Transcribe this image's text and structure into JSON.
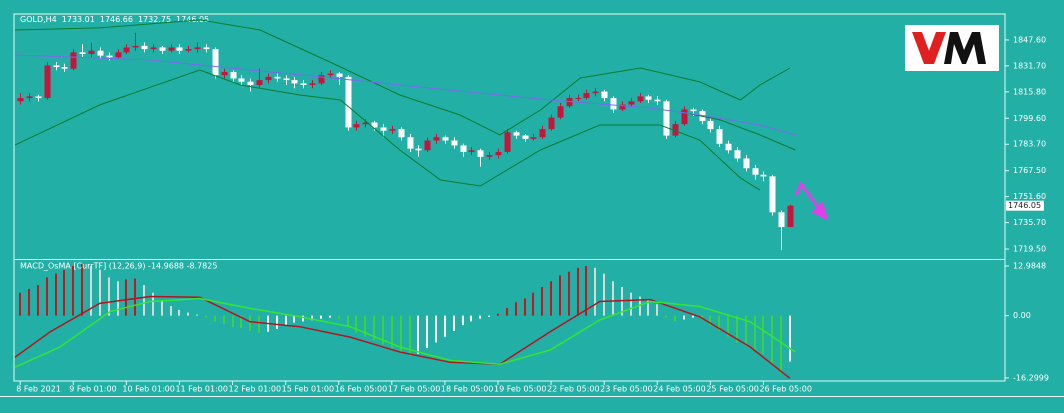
{
  "chart_data": [
    {
      "type": "candlestick",
      "title": "GOLD,H4",
      "xlim": [
        -0.7,
        111.3
      ],
      "ylim": [
        1714.0,
        1863.5
      ],
      "yticks": [
        {
          "value": 1847.6,
          "label": "1847.60"
        },
        {
          "value": 1831.7,
          "label": "1831.70"
        },
        {
          "value": 1815.8,
          "label": "1815.80"
        },
        {
          "value": 1799.6,
          "label": "1799.60"
        },
        {
          "value": 1783.7,
          "label": "1783.70"
        },
        {
          "value": 1767.5,
          "label": "1767.50"
        },
        {
          "value": 1751.6,
          "label": "1751.60"
        },
        {
          "value": 1735.7,
          "label": "1735.70"
        },
        {
          "value": 1719.5,
          "label": "1719.50"
        }
      ],
      "xticks": [
        {
          "value": 0,
          "label": "8 Feb 2021"
        },
        {
          "value": 6,
          "label": "9 Feb 01:00"
        },
        {
          "value": 12,
          "label": "10 Feb 01:00"
        },
        {
          "value": 18,
          "label": "11 Feb 01:00"
        },
        {
          "value": 24,
          "label": "12 Feb 01:00"
        },
        {
          "value": 30,
          "label": "15 Feb 01:00"
        },
        {
          "value": 36,
          "label": "16 Feb 05:00"
        },
        {
          "value": 42,
          "label": "17 Feb 05:00"
        },
        {
          "value": 48,
          "label": "18 Feb 05:00"
        },
        {
          "value": 54,
          "label": "19 Feb 05:00"
        },
        {
          "value": 60,
          "label": "22 Feb 05:00"
        },
        {
          "value": 66,
          "label": "23 Feb 05:00"
        },
        {
          "value": 72,
          "label": "24 Feb 05:00"
        },
        {
          "value": 78,
          "label": "25 Feb 05:00"
        },
        {
          "value": 84,
          "label": "26 Feb 05:00"
        }
      ],
      "up_color": "#c8143c",
      "down_color": "#ffffff",
      "ohlc": [
        [
          1810,
          1815,
          1808,
          1812
        ],
        [
          1812,
          1815,
          1810,
          1813
        ],
        [
          1813,
          1814,
          1810,
          1812
        ],
        [
          1812,
          1834,
          1811,
          1832
        ],
        [
          1832,
          1834,
          1829,
          1831
        ],
        [
          1831,
          1833,
          1828,
          1830
        ],
        [
          1830,
          1842,
          1829,
          1840
        ],
        [
          1840,
          1845,
          1837,
          1839
        ],
        [
          1839,
          1846,
          1837,
          1841
        ],
        [
          1841,
          1843,
          1836,
          1838
        ],
        [
          1838,
          1840,
          1835,
          1837
        ],
        [
          1837,
          1842,
          1836,
          1840
        ],
        [
          1840,
          1845,
          1839,
          1843
        ],
        [
          1843,
          1852,
          1841,
          1844
        ],
        [
          1844,
          1846,
          1840,
          1842
        ],
        [
          1842,
          1845,
          1840,
          1843
        ],
        [
          1843,
          1844,
          1839,
          1841
        ],
        [
          1841,
          1845,
          1840,
          1843
        ],
        [
          1843,
          1845,
          1839,
          1841
        ],
        [
          1841,
          1844,
          1840,
          1842
        ],
        [
          1842,
          1846,
          1840,
          1843
        ],
        [
          1843,
          1845,
          1840,
          1842
        ],
        [
          1842,
          1843,
          1824,
          1826
        ],
        [
          1826,
          1830,
          1824,
          1828
        ],
        [
          1828,
          1829,
          1822,
          1824
        ],
        [
          1824,
          1826,
          1820,
          1822
        ],
        [
          1822,
          1824,
          1816,
          1820
        ],
        [
          1820,
          1830,
          1818,
          1823
        ],
        [
          1823,
          1827,
          1821,
          1825
        ],
        [
          1825,
          1827,
          1822,
          1824
        ],
        [
          1824,
          1826,
          1820,
          1823
        ],
        [
          1823,
          1825,
          1818,
          1821
        ],
        [
          1821,
          1823,
          1818,
          1820
        ],
        [
          1820,
          1823,
          1818,
          1821
        ],
        [
          1821,
          1828,
          1820,
          1826
        ],
        [
          1826,
          1829,
          1824,
          1827
        ],
        [
          1827,
          1828,
          1820,
          1825
        ],
        [
          1825,
          1826,
          1792,
          1794
        ],
        [
          1794,
          1798,
          1792,
          1796
        ],
        [
          1796,
          1799,
          1794,
          1797
        ],
        [
          1797,
          1798,
          1792,
          1794
        ],
        [
          1794,
          1796,
          1788,
          1792
        ],
        [
          1792,
          1795,
          1790,
          1793
        ],
        [
          1793,
          1794,
          1786,
          1788
        ],
        [
          1788,
          1790,
          1779,
          1781
        ],
        [
          1781,
          1783,
          1776,
          1780
        ],
        [
          1780,
          1788,
          1779,
          1786
        ],
        [
          1786,
          1790,
          1784,
          1788
        ],
        [
          1788,
          1789,
          1784,
          1786
        ],
        [
          1786,
          1788,
          1781,
          1783
        ],
        [
          1783,
          1784,
          1776,
          1779
        ],
        [
          1779,
          1782,
          1777,
          1780
        ],
        [
          1780,
          1781,
          1770,
          1776
        ],
        [
          1776,
          1779,
          1774,
          1777
        ],
        [
          1777,
          1781,
          1775,
          1779
        ],
        [
          1779,
          1793,
          1778,
          1791
        ],
        [
          1791,
          1792,
          1787,
          1789
        ],
        [
          1789,
          1790,
          1785,
          1787
        ],
        [
          1787,
          1790,
          1786,
          1788
        ],
        [
          1788,
          1795,
          1787,
          1793
        ],
        [
          1793,
          1802,
          1792,
          1800
        ],
        [
          1800,
          1809,
          1799,
          1807
        ],
        [
          1807,
          1814,
          1806,
          1812
        ],
        [
          1812,
          1814,
          1810,
          1812
        ],
        [
          1812,
          1817,
          1811,
          1815
        ],
        [
          1815,
          1818,
          1813,
          1816
        ],
        [
          1816,
          1817,
          1810,
          1812
        ],
        [
          1812,
          1813,
          1803,
          1805
        ],
        [
          1805,
          1810,
          1804,
          1808
        ],
        [
          1808,
          1812,
          1807,
          1810
        ],
        [
          1810,
          1815,
          1809,
          1813
        ],
        [
          1813,
          1814,
          1809,
          1811
        ],
        [
          1811,
          1813,
          1808,
          1810
        ],
        [
          1810,
          1811,
          1787,
          1789
        ],
        [
          1789,
          1798,
          1788,
          1796
        ],
        [
          1796,
          1807,
          1795,
          1805
        ],
        [
          1805,
          1806,
          1801,
          1804
        ],
        [
          1804,
          1805,
          1796,
          1798
        ],
        [
          1798,
          1800,
          1791,
          1793
        ],
        [
          1793,
          1795,
          1782,
          1784
        ],
        [
          1784,
          1786,
          1778,
          1780
        ],
        [
          1780,
          1782,
          1773,
          1775
        ],
        [
          1775,
          1777,
          1767,
          1769
        ],
        [
          1769,
          1771,
          1762,
          1765
        ],
        [
          1765,
          1767,
          1761,
          1764
        ],
        [
          1764,
          1765,
          1740,
          1742
        ],
        [
          1742,
          1743,
          1719,
          1733
        ],
        [
          1733.01,
          1746.66,
          1732.75,
          1746.05
        ]
      ],
      "lines": [
        {
          "color": "#0b7a2e",
          "x": [
            -0.6,
            9.0,
            20.3,
            27.1,
            35.0,
            42.9,
            49.7,
            54.2,
            58.8,
            63.3,
            70.1,
            76.8,
            81.4,
            83.6,
            87.0
          ],
          "values": [
            1853.7,
            1855.0,
            1859.9,
            1853.7,
            1834.1,
            1813.9,
            1801.6,
            1789.4,
            1804.7,
            1824.3,
            1830.4,
            1821.9,
            1810.8,
            1820.0,
            1830.4
          ]
        },
        {
          "color": "#0b7a2e",
          "x": [
            -0.6,
            9.0,
            20.3,
            24.9,
            31.6,
            36.2,
            42.9,
            47.5,
            52.0,
            58.8,
            65.5,
            72.3,
            76.8,
            81.4,
            83.6
          ],
          "values": [
            1783.2,
            1807.8,
            1829.2,
            1820.0,
            1813.9,
            1810.8,
            1780.2,
            1761.8,
            1758.1,
            1780.2,
            1795.5,
            1795.5,
            1786.3,
            1763.0,
            1755.6
          ]
        },
        {
          "color": "#0b7a2e",
          "x": [
            74.6,
            79.1,
            83.6,
            87.6
          ],
          "values": [
            1803.5,
            1798.6,
            1789.4,
            1780.2
          ]
        },
        {
          "color": "#7b68ee",
          "x": [
            -0.6,
            14.7,
            26.0,
            37.3,
            48.6,
            59.9,
            71.2,
            76.8,
            83.6,
            87.6
          ],
          "values": [
            1838.4,
            1835.3,
            1829.2,
            1823.1,
            1816.9,
            1810.8,
            1805.9,
            1801.6,
            1795.5,
            1789.4
          ]
        }
      ]
    },
    {
      "type": "histogram",
      "title": "MACD_OsMA [CurrTF] (12,26,9) -14.9688 -8.7825",
      "xlim": [
        -0.7,
        111.3
      ],
      "ylim": [
        -17.1,
        14.3
      ],
      "yticks": [
        12.9848,
        {
          "value": 0,
          "label": "0.00"
        },
        -16.2999
      ],
      "colors": [
        "#c8141e",
        "#d8d8d8",
        "#3cd23c",
        "#ffffff"
      ],
      "values": [
        6,
        7,
        8,
        10,
        11,
        12,
        13,
        13.5,
        13,
        12,
        10,
        9,
        9.5,
        9.7,
        8,
        6,
        4,
        2.5,
        1.5,
        0.8,
        0.3,
        -0.5,
        -1.5,
        -2.2,
        -3,
        -3.3,
        -4,
        -4.5,
        -4.2,
        -3.5,
        -2.5,
        -1.8,
        -1.5,
        -1.2,
        -0.8,
        -0.5,
        -0.8,
        -3,
        -4.5,
        -5.5,
        -6.5,
        -7.5,
        -8.5,
        -9.5,
        -10.5,
        -10,
        -8.5,
        -7,
        -5.5,
        -4,
        -2.5,
        -1.5,
        -0.8,
        -0.3,
        0.5,
        2,
        3.5,
        4.5,
        6,
        7.5,
        9,
        10.5,
        11.5,
        12.5,
        13,
        12.5,
        11,
        9,
        7.5,
        6,
        5,
        4,
        3,
        -0.5,
        -1.5,
        -1,
        -0.5,
        -1,
        -2.5,
        -4,
        -5.5,
        -7,
        -8,
        -9,
        -10,
        -12.5,
        -15,
        -12
      ],
      "lines": [
        {
          "color": "#b4141e",
          "x": [
            -0.6,
            3.4,
            9.0,
            14.7,
            20.3,
            26.0,
            31.6,
            37.3,
            42.9,
            48.6,
            54.2,
            59.9,
            65.5,
            71.2,
            76.8,
            82.5,
            87.0
          ],
          "values": [
            -10.9,
            -4.2,
            3.2,
            5.0,
            4.8,
            -1.6,
            -2.9,
            -5.6,
            -9.5,
            -12.2,
            -12.7,
            -4.2,
            3.7,
            4.2,
            -0.3,
            -8.2,
            -16.4
          ]
        },
        {
          "color": "#32e632",
          "x": [
            -0.6,
            4.5,
            10.2,
            14.7,
            20.3,
            26.0,
            31.6,
            37.3,
            42.9,
            48.6,
            54.2,
            59.9,
            65.5,
            71.2,
            76.8,
            82.5,
            87.6
          ],
          "values": [
            -13.5,
            -8.2,
            1.1,
            3.7,
            4.5,
            1.9,
            -0.3,
            -2.9,
            -8.2,
            -11.7,
            -12.7,
            -9.0,
            -1.1,
            3.7,
            2.4,
            -1.6,
            -9.5
          ]
        }
      ]
    }
  ]
}
